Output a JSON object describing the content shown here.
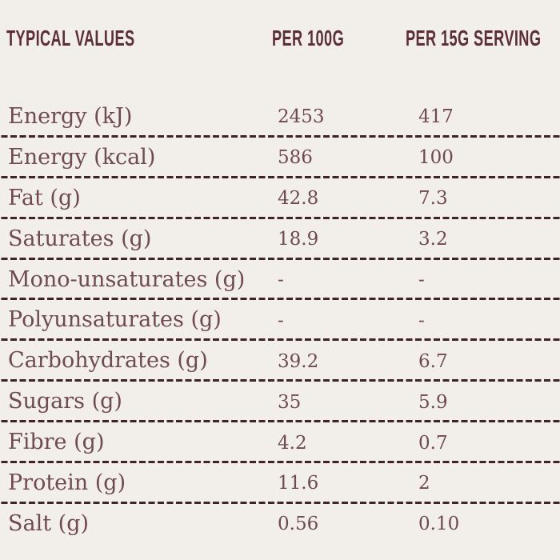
{
  "table": {
    "headers": [
      "TYPICAL VALUES",
      "PER 100G",
      "PER 15G SERVING"
    ],
    "rows": [
      {
        "label": "Energy (kJ)",
        "per_100g": "2453",
        "per_15g": "417"
      },
      {
        "label": "Energy (kcal)",
        "per_100g": "586",
        "per_15g": "100"
      },
      {
        "label": "Fat (g)",
        "per_100g": "42.8",
        "per_15g": "7.3"
      },
      {
        "label": "Saturates (g)",
        "per_100g": "18.9",
        "per_15g": "3.2"
      },
      {
        "label": "Mono-unsaturates (g)",
        "per_100g": "-",
        "per_15g": "-"
      },
      {
        "label": "Polyunsaturates (g)",
        "per_100g": "-",
        "per_15g": "-"
      },
      {
        "label": "Carbohydrates (g)",
        "per_100g": "39.2",
        "per_15g": "6.7"
      },
      {
        "label": "Sugars (g)",
        "per_100g": "35",
        "per_15g": "5.9"
      },
      {
        "label": "Fibre (g)",
        "per_100g": "4.2",
        "per_15g": "0.7"
      },
      {
        "label": "Protein (g)",
        "per_100g": "11.6",
        "per_15g": "2"
      },
      {
        "label": "Salt (g)",
        "per_100g": "0.56",
        "per_15g": "0.10"
      }
    ]
  },
  "chart_data": {
    "type": "table",
    "title": "TYPICAL VALUES",
    "columns": [
      "TYPICAL VALUES",
      "PER 100G",
      "PER 15G SERVING"
    ],
    "rows": [
      [
        "Energy (kJ)",
        "2453",
        "417"
      ],
      [
        "Energy (kcal)",
        "586",
        "100"
      ],
      [
        "Fat (g)",
        "42.8",
        "7.3"
      ],
      [
        "Saturates (g)",
        "18.9",
        "3.2"
      ],
      [
        "Mono-unsaturates (g)",
        "-",
        "-"
      ],
      [
        "Polyunsaturates (g)",
        "-",
        "-"
      ],
      [
        "Carbohydrates (g)",
        "39.2",
        "6.7"
      ],
      [
        "Sugars (g)",
        "35",
        "5.9"
      ],
      [
        "Fibre (g)",
        "4.2",
        "0.7"
      ],
      [
        "Protein (g)",
        "11.6",
        "2"
      ],
      [
        "Salt (g)",
        "0.56",
        "0.10"
      ]
    ]
  },
  "colors": {
    "background": "#f2efea",
    "header_text": "#5c2e35",
    "body_text": "#6f4a4e",
    "separator": "#3e2327"
  }
}
